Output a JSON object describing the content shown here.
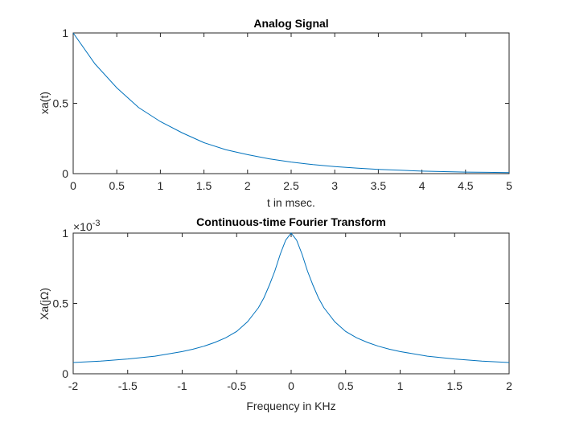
{
  "chart_data": [
    {
      "type": "line",
      "title": "Analog Signal",
      "xlabel": "t in msec.",
      "ylabel": "xa(t)",
      "xlim": [
        0,
        5
      ],
      "ylim": [
        0,
        1
      ],
      "xticks": [
        "0",
        "0.5",
        "1",
        "1.5",
        "2",
        "2.5",
        "3",
        "3.5",
        "4",
        "4.5",
        "5"
      ],
      "yticks": [
        "0",
        "0.5",
        "1"
      ],
      "grid": false,
      "color": "#0072BD",
      "series": [
        {
          "x": [
            0,
            0.25,
            0.5,
            0.75,
            1,
            1.25,
            1.5,
            1.75,
            2,
            2.25,
            2.5,
            2.75,
            3,
            3.25,
            3.5,
            3.75,
            4,
            4.25,
            4.5,
            4.75,
            5
          ],
          "values": [
            1,
            0.78,
            0.61,
            0.47,
            0.37,
            0.29,
            0.22,
            0.17,
            0.135,
            0.105,
            0.082,
            0.064,
            0.05,
            0.039,
            0.03,
            0.024,
            0.018,
            0.014,
            0.011,
            0.009,
            0.007
          ]
        }
      ]
    },
    {
      "type": "line",
      "title": "Continuous-time Fourier Transform",
      "xlabel": "Frequency in KHz",
      "ylabel": "Xa(jΩ)",
      "y_exponent_base": "×10",
      "y_exponent_power": "-3",
      "xlim": [
        -2,
        2
      ],
      "ylim": [
        0,
        1
      ],
      "xticks": [
        "-2",
        "-1.5",
        "-1",
        "-0.5",
        "0",
        "0.5",
        "1",
        "1.5",
        "2"
      ],
      "yticks": [
        "0",
        "0.5",
        "1"
      ],
      "grid": false,
      "color": "#0072BD",
      "series": [
        {
          "x": [
            -2,
            -1.75,
            -1.5,
            -1.25,
            -1,
            -0.9,
            -0.8,
            -0.7,
            -0.6,
            -0.5,
            -0.4,
            -0.35,
            -0.3,
            -0.25,
            -0.2,
            -0.15,
            -0.1,
            -0.05,
            0,
            0.05,
            0.1,
            0.15,
            0.2,
            0.25,
            0.3,
            0.35,
            0.4,
            0.5,
            0.6,
            0.7,
            0.8,
            0.9,
            1,
            1.25,
            1.5,
            1.75,
            2
          ],
          "values": [
            0.08,
            0.09,
            0.105,
            0.125,
            0.158,
            0.175,
            0.196,
            0.223,
            0.256,
            0.301,
            0.37,
            0.42,
            0.47,
            0.54,
            0.63,
            0.73,
            0.85,
            0.95,
            1.0,
            0.95,
            0.85,
            0.73,
            0.63,
            0.54,
            0.47,
            0.42,
            0.37,
            0.301,
            0.256,
            0.223,
            0.196,
            0.175,
            0.158,
            0.125,
            0.105,
            0.09,
            0.08
          ]
        }
      ]
    }
  ]
}
